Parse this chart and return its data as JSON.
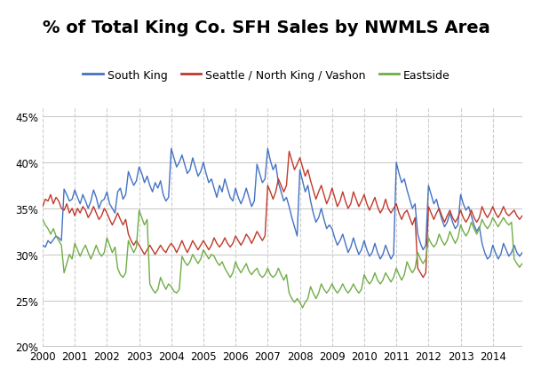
{
  "title": "% of Total King Co. SFH Sales by NWMLS Area",
  "legend_labels": [
    "South King",
    "Seattle / North King / Vashon",
    "Eastside"
  ],
  "line_colors": [
    "#4472C4",
    "#C0392B",
    "#70AD47"
  ],
  "background_color": "#FFFFFF",
  "ylim": [
    0.2,
    0.46
  ],
  "yticks": [
    0.2,
    0.25,
    0.3,
    0.35,
    0.4,
    0.45
  ],
  "xlim_start": 2000.0,
  "xlim_end": 2014.92,
  "xtick_years": [
    2000,
    2001,
    2002,
    2003,
    2004,
    2005,
    2006,
    2007,
    2008,
    2009,
    2010,
    2011,
    2012,
    2013,
    2014
  ],
  "south_king": [
    0.31,
    0.308,
    0.315,
    0.312,
    0.316,
    0.32,
    0.318,
    0.315,
    0.371,
    0.365,
    0.358,
    0.36,
    0.37,
    0.362,
    0.355,
    0.365,
    0.358,
    0.35,
    0.358,
    0.37,
    0.362,
    0.35,
    0.358,
    0.36,
    0.368,
    0.355,
    0.35,
    0.345,
    0.368,
    0.372,
    0.36,
    0.365,
    0.39,
    0.382,
    0.375,
    0.38,
    0.395,
    0.388,
    0.378,
    0.385,
    0.375,
    0.368,
    0.378,
    0.372,
    0.38,
    0.365,
    0.358,
    0.362,
    0.415,
    0.405,
    0.395,
    0.4,
    0.408,
    0.398,
    0.388,
    0.392,
    0.405,
    0.395,
    0.385,
    0.39,
    0.4,
    0.388,
    0.378,
    0.382,
    0.372,
    0.362,
    0.375,
    0.368,
    0.382,
    0.372,
    0.362,
    0.358,
    0.372,
    0.362,
    0.355,
    0.362,
    0.372,
    0.362,
    0.352,
    0.358,
    0.398,
    0.388,
    0.378,
    0.382,
    0.415,
    0.402,
    0.392,
    0.398,
    0.378,
    0.368,
    0.358,
    0.362,
    0.352,
    0.34,
    0.33,
    0.32,
    0.392,
    0.38,
    0.368,
    0.375,
    0.358,
    0.345,
    0.335,
    0.34,
    0.35,
    0.338,
    0.328,
    0.332,
    0.328,
    0.318,
    0.31,
    0.315,
    0.322,
    0.312,
    0.302,
    0.308,
    0.318,
    0.308,
    0.3,
    0.305,
    0.315,
    0.305,
    0.298,
    0.302,
    0.312,
    0.302,
    0.295,
    0.3,
    0.31,
    0.302,
    0.295,
    0.3,
    0.4,
    0.388,
    0.378,
    0.382,
    0.37,
    0.36,
    0.35,
    0.355,
    0.322,
    0.312,
    0.305,
    0.31,
    0.375,
    0.365,
    0.355,
    0.36,
    0.348,
    0.338,
    0.33,
    0.335,
    0.345,
    0.335,
    0.328,
    0.332,
    0.365,
    0.355,
    0.348,
    0.352,
    0.342,
    0.332,
    0.325,
    0.33,
    0.312,
    0.302,
    0.295,
    0.298,
    0.31,
    0.302,
    0.295,
    0.3,
    0.312,
    0.305,
    0.298,
    0.302,
    0.31,
    0.302,
    0.298,
    0.302
  ],
  "seattle_nk_vashon": [
    0.352,
    0.36,
    0.358,
    0.365,
    0.355,
    0.362,
    0.358,
    0.35,
    0.348,
    0.355,
    0.345,
    0.35,
    0.342,
    0.35,
    0.345,
    0.352,
    0.348,
    0.34,
    0.345,
    0.352,
    0.345,
    0.338,
    0.342,
    0.35,
    0.345,
    0.338,
    0.332,
    0.338,
    0.345,
    0.338,
    0.332,
    0.338,
    0.322,
    0.315,
    0.31,
    0.315,
    0.31,
    0.305,
    0.3,
    0.305,
    0.31,
    0.305,
    0.3,
    0.305,
    0.31,
    0.305,
    0.302,
    0.308,
    0.312,
    0.308,
    0.302,
    0.308,
    0.315,
    0.308,
    0.302,
    0.308,
    0.315,
    0.31,
    0.305,
    0.31,
    0.315,
    0.31,
    0.305,
    0.31,
    0.318,
    0.312,
    0.308,
    0.312,
    0.318,
    0.312,
    0.308,
    0.312,
    0.32,
    0.315,
    0.31,
    0.315,
    0.322,
    0.318,
    0.312,
    0.318,
    0.325,
    0.32,
    0.315,
    0.32,
    0.375,
    0.368,
    0.36,
    0.368,
    0.382,
    0.375,
    0.368,
    0.375,
    0.412,
    0.402,
    0.392,
    0.398,
    0.405,
    0.395,
    0.385,
    0.392,
    0.38,
    0.37,
    0.36,
    0.368,
    0.375,
    0.365,
    0.355,
    0.362,
    0.372,
    0.362,
    0.352,
    0.358,
    0.368,
    0.358,
    0.35,
    0.355,
    0.368,
    0.36,
    0.352,
    0.358,
    0.365,
    0.355,
    0.348,
    0.355,
    0.362,
    0.352,
    0.345,
    0.35,
    0.36,
    0.35,
    0.345,
    0.35,
    0.355,
    0.345,
    0.338,
    0.345,
    0.348,
    0.34,
    0.332,
    0.34,
    0.285,
    0.28,
    0.275,
    0.28,
    0.352,
    0.345,
    0.338,
    0.345,
    0.35,
    0.342,
    0.335,
    0.342,
    0.348,
    0.34,
    0.335,
    0.34,
    0.348,
    0.34,
    0.335,
    0.34,
    0.348,
    0.34,
    0.335,
    0.34,
    0.352,
    0.345,
    0.34,
    0.345,
    0.352,
    0.345,
    0.34,
    0.345,
    0.352,
    0.345,
    0.342,
    0.345,
    0.348,
    0.342,
    0.338,
    0.342
  ],
  "eastside": [
    0.338,
    0.332,
    0.328,
    0.322,
    0.328,
    0.32,
    0.315,
    0.31,
    0.28,
    0.29,
    0.3,
    0.295,
    0.312,
    0.305,
    0.298,
    0.305,
    0.31,
    0.302,
    0.295,
    0.302,
    0.31,
    0.302,
    0.298,
    0.302,
    0.318,
    0.31,
    0.302,
    0.308,
    0.285,
    0.278,
    0.275,
    0.28,
    0.315,
    0.308,
    0.302,
    0.308,
    0.348,
    0.34,
    0.332,
    0.338,
    0.268,
    0.262,
    0.258,
    0.262,
    0.275,
    0.268,
    0.262,
    0.268,
    0.265,
    0.26,
    0.258,
    0.262,
    0.298,
    0.292,
    0.288,
    0.292,
    0.3,
    0.295,
    0.29,
    0.295,
    0.305,
    0.3,
    0.295,
    0.3,
    0.298,
    0.292,
    0.288,
    0.292,
    0.285,
    0.28,
    0.275,
    0.28,
    0.292,
    0.285,
    0.28,
    0.285,
    0.29,
    0.282,
    0.278,
    0.282,
    0.285,
    0.278,
    0.275,
    0.278,
    0.285,
    0.278,
    0.275,
    0.278,
    0.285,
    0.278,
    0.272,
    0.278,
    0.258,
    0.252,
    0.248,
    0.252,
    0.248,
    0.242,
    0.248,
    0.252,
    0.265,
    0.258,
    0.252,
    0.258,
    0.268,
    0.262,
    0.258,
    0.262,
    0.268,
    0.262,
    0.258,
    0.262,
    0.268,
    0.262,
    0.258,
    0.262,
    0.268,
    0.262,
    0.258,
    0.262,
    0.278,
    0.272,
    0.268,
    0.272,
    0.28,
    0.272,
    0.268,
    0.272,
    0.28,
    0.275,
    0.27,
    0.275,
    0.285,
    0.278,
    0.272,
    0.278,
    0.292,
    0.285,
    0.28,
    0.285,
    0.302,
    0.295,
    0.29,
    0.295,
    0.318,
    0.312,
    0.308,
    0.312,
    0.322,
    0.315,
    0.31,
    0.315,
    0.325,
    0.318,
    0.312,
    0.318,
    0.332,
    0.325,
    0.32,
    0.325,
    0.335,
    0.328,
    0.322,
    0.328,
    0.338,
    0.332,
    0.328,
    0.332,
    0.34,
    0.335,
    0.33,
    0.335,
    0.34,
    0.335,
    0.332,
    0.335,
    0.295,
    0.29,
    0.286,
    0.29
  ]
}
